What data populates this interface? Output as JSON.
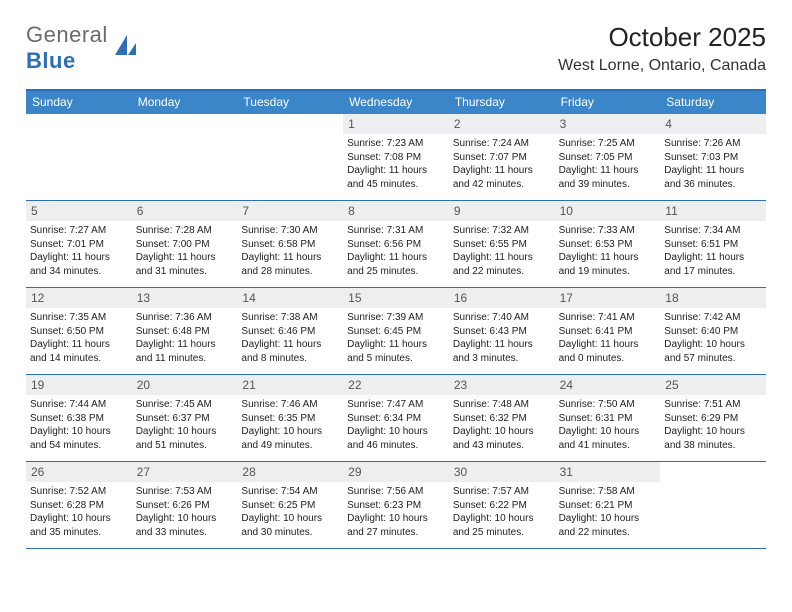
{
  "logo": {
    "text1": "General",
    "text2": "Blue"
  },
  "colors": {
    "accent": "#3a86c8",
    "border": "#2d6fb7",
    "daynum_bg": "#eceef0",
    "logo_gray": "#6b6b6b",
    "logo_blue": "#2d6fb7"
  },
  "header": {
    "title": "October 2025",
    "location": "West Lorne, Ontario, Canada"
  },
  "day_headers": [
    "Sunday",
    "Monday",
    "Tuesday",
    "Wednesday",
    "Thursday",
    "Friday",
    "Saturday"
  ],
  "weeks": [
    [
      {
        "blank": true
      },
      {
        "blank": true
      },
      {
        "blank": true
      },
      {
        "day": "1",
        "sunrise": "Sunrise: 7:23 AM",
        "sunset": "Sunset: 7:08 PM",
        "dl1": "Daylight: 11 hours",
        "dl2": "and 45 minutes."
      },
      {
        "day": "2",
        "sunrise": "Sunrise: 7:24 AM",
        "sunset": "Sunset: 7:07 PM",
        "dl1": "Daylight: 11 hours",
        "dl2": "and 42 minutes."
      },
      {
        "day": "3",
        "sunrise": "Sunrise: 7:25 AM",
        "sunset": "Sunset: 7:05 PM",
        "dl1": "Daylight: 11 hours",
        "dl2": "and 39 minutes."
      },
      {
        "day": "4",
        "sunrise": "Sunrise: 7:26 AM",
        "sunset": "Sunset: 7:03 PM",
        "dl1": "Daylight: 11 hours",
        "dl2": "and 36 minutes."
      }
    ],
    [
      {
        "day": "5",
        "sunrise": "Sunrise: 7:27 AM",
        "sunset": "Sunset: 7:01 PM",
        "dl1": "Daylight: 11 hours",
        "dl2": "and 34 minutes."
      },
      {
        "day": "6",
        "sunrise": "Sunrise: 7:28 AM",
        "sunset": "Sunset: 7:00 PM",
        "dl1": "Daylight: 11 hours",
        "dl2": "and 31 minutes."
      },
      {
        "day": "7",
        "sunrise": "Sunrise: 7:30 AM",
        "sunset": "Sunset: 6:58 PM",
        "dl1": "Daylight: 11 hours",
        "dl2": "and 28 minutes."
      },
      {
        "day": "8",
        "sunrise": "Sunrise: 7:31 AM",
        "sunset": "Sunset: 6:56 PM",
        "dl1": "Daylight: 11 hours",
        "dl2": "and 25 minutes."
      },
      {
        "day": "9",
        "sunrise": "Sunrise: 7:32 AM",
        "sunset": "Sunset: 6:55 PM",
        "dl1": "Daylight: 11 hours",
        "dl2": "and 22 minutes."
      },
      {
        "day": "10",
        "sunrise": "Sunrise: 7:33 AM",
        "sunset": "Sunset: 6:53 PM",
        "dl1": "Daylight: 11 hours",
        "dl2": "and 19 minutes."
      },
      {
        "day": "11",
        "sunrise": "Sunrise: 7:34 AM",
        "sunset": "Sunset: 6:51 PM",
        "dl1": "Daylight: 11 hours",
        "dl2": "and 17 minutes."
      }
    ],
    [
      {
        "day": "12",
        "sunrise": "Sunrise: 7:35 AM",
        "sunset": "Sunset: 6:50 PM",
        "dl1": "Daylight: 11 hours",
        "dl2": "and 14 minutes."
      },
      {
        "day": "13",
        "sunrise": "Sunrise: 7:36 AM",
        "sunset": "Sunset: 6:48 PM",
        "dl1": "Daylight: 11 hours",
        "dl2": "and 11 minutes."
      },
      {
        "day": "14",
        "sunrise": "Sunrise: 7:38 AM",
        "sunset": "Sunset: 6:46 PM",
        "dl1": "Daylight: 11 hours",
        "dl2": "and 8 minutes."
      },
      {
        "day": "15",
        "sunrise": "Sunrise: 7:39 AM",
        "sunset": "Sunset: 6:45 PM",
        "dl1": "Daylight: 11 hours",
        "dl2": "and 5 minutes."
      },
      {
        "day": "16",
        "sunrise": "Sunrise: 7:40 AM",
        "sunset": "Sunset: 6:43 PM",
        "dl1": "Daylight: 11 hours",
        "dl2": "and 3 minutes."
      },
      {
        "day": "17",
        "sunrise": "Sunrise: 7:41 AM",
        "sunset": "Sunset: 6:41 PM",
        "dl1": "Daylight: 11 hours",
        "dl2": "and 0 minutes."
      },
      {
        "day": "18",
        "sunrise": "Sunrise: 7:42 AM",
        "sunset": "Sunset: 6:40 PM",
        "dl1": "Daylight: 10 hours",
        "dl2": "and 57 minutes."
      }
    ],
    [
      {
        "day": "19",
        "sunrise": "Sunrise: 7:44 AM",
        "sunset": "Sunset: 6:38 PM",
        "dl1": "Daylight: 10 hours",
        "dl2": "and 54 minutes."
      },
      {
        "day": "20",
        "sunrise": "Sunrise: 7:45 AM",
        "sunset": "Sunset: 6:37 PM",
        "dl1": "Daylight: 10 hours",
        "dl2": "and 51 minutes."
      },
      {
        "day": "21",
        "sunrise": "Sunrise: 7:46 AM",
        "sunset": "Sunset: 6:35 PM",
        "dl1": "Daylight: 10 hours",
        "dl2": "and 49 minutes."
      },
      {
        "day": "22",
        "sunrise": "Sunrise: 7:47 AM",
        "sunset": "Sunset: 6:34 PM",
        "dl1": "Daylight: 10 hours",
        "dl2": "and 46 minutes."
      },
      {
        "day": "23",
        "sunrise": "Sunrise: 7:48 AM",
        "sunset": "Sunset: 6:32 PM",
        "dl1": "Daylight: 10 hours",
        "dl2": "and 43 minutes."
      },
      {
        "day": "24",
        "sunrise": "Sunrise: 7:50 AM",
        "sunset": "Sunset: 6:31 PM",
        "dl1": "Daylight: 10 hours",
        "dl2": "and 41 minutes."
      },
      {
        "day": "25",
        "sunrise": "Sunrise: 7:51 AM",
        "sunset": "Sunset: 6:29 PM",
        "dl1": "Daylight: 10 hours",
        "dl2": "and 38 minutes."
      }
    ],
    [
      {
        "day": "26",
        "sunrise": "Sunrise: 7:52 AM",
        "sunset": "Sunset: 6:28 PM",
        "dl1": "Daylight: 10 hours",
        "dl2": "and 35 minutes."
      },
      {
        "day": "27",
        "sunrise": "Sunrise: 7:53 AM",
        "sunset": "Sunset: 6:26 PM",
        "dl1": "Daylight: 10 hours",
        "dl2": "and 33 minutes."
      },
      {
        "day": "28",
        "sunrise": "Sunrise: 7:54 AM",
        "sunset": "Sunset: 6:25 PM",
        "dl1": "Daylight: 10 hours",
        "dl2": "and 30 minutes."
      },
      {
        "day": "29",
        "sunrise": "Sunrise: 7:56 AM",
        "sunset": "Sunset: 6:23 PM",
        "dl1": "Daylight: 10 hours",
        "dl2": "and 27 minutes."
      },
      {
        "day": "30",
        "sunrise": "Sunrise: 7:57 AM",
        "sunset": "Sunset: 6:22 PM",
        "dl1": "Daylight: 10 hours",
        "dl2": "and 25 minutes."
      },
      {
        "day": "31",
        "sunrise": "Sunrise: 7:58 AM",
        "sunset": "Sunset: 6:21 PM",
        "dl1": "Daylight: 10 hours",
        "dl2": "and 22 minutes."
      },
      {
        "blank": true
      }
    ]
  ]
}
